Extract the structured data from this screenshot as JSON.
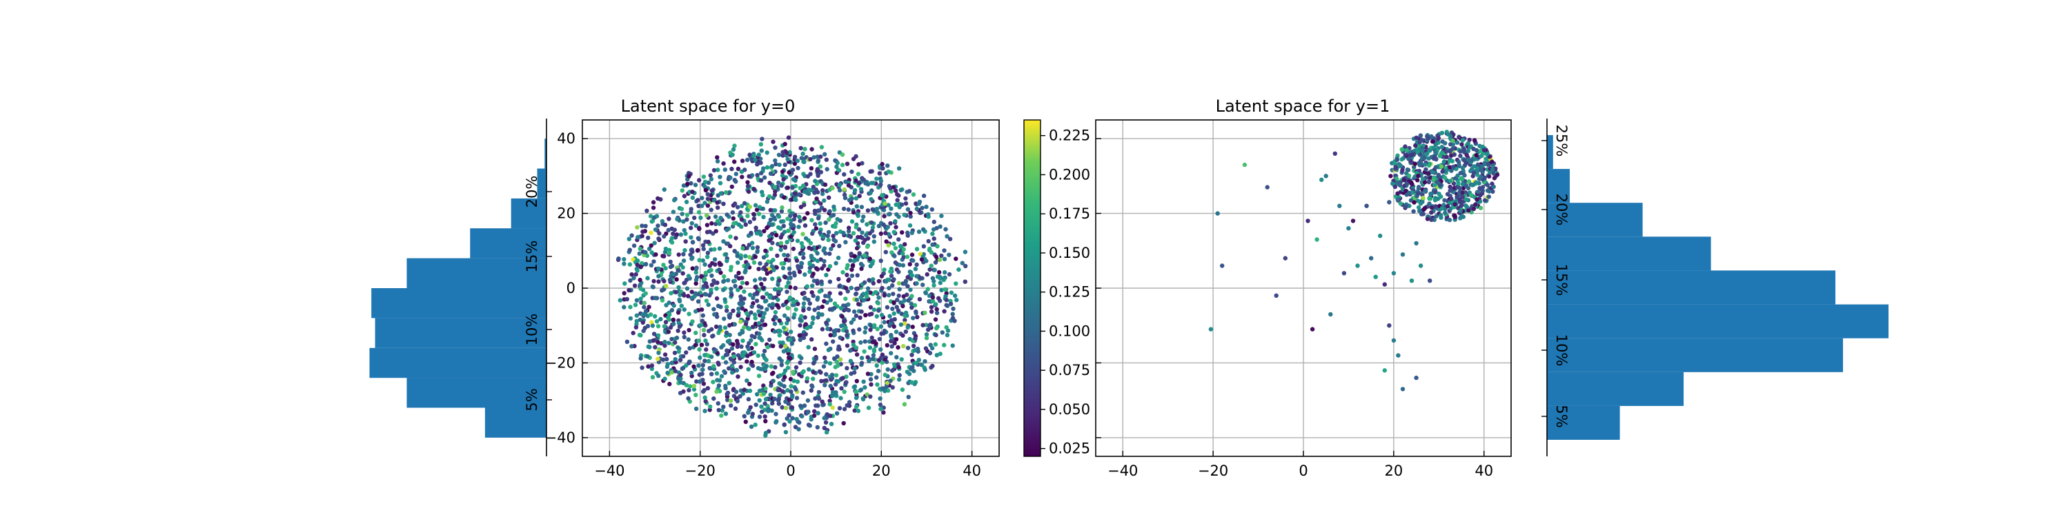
{
  "figure": {
    "background": "#ffffff"
  },
  "chart_data": [
    {
      "id": "hist_y0",
      "type": "bar",
      "orientation": "horizontal",
      "direction": "leftward",
      "color": "#1f77b4",
      "ylabel": "",
      "yticks": [
        "5%",
        "10%",
        "15%",
        "20%"
      ],
      "bins": [
        {
          "from": -40,
          "to": -32,
          "value": 6.6
        },
        {
          "from": -32,
          "to": -24,
          "value": 15.0
        },
        {
          "from": -24,
          "to": -16,
          "value": 19.0
        },
        {
          "from": -16,
          "to": -8,
          "value": 18.4
        },
        {
          "from": -8,
          "to": 0,
          "value": 18.8
        },
        {
          "from": 0,
          "to": 8,
          "value": 15.0
        },
        {
          "from": 8,
          "to": 16,
          "value": 8.2
        },
        {
          "from": 16,
          "to": 24,
          "value": 3.8
        },
        {
          "from": 24,
          "to": 32,
          "value": 1.0
        },
        {
          "from": 32,
          "to": 40,
          "value": 0.2
        }
      ],
      "scale_max": 20
    },
    {
      "id": "scatter_y0",
      "type": "scatter",
      "title": "Latent space for y=0",
      "xlim": [
        -46,
        46
      ],
      "ylim": [
        -45,
        45
      ],
      "xticks": [
        -40,
        -20,
        0,
        20,
        40
      ],
      "yticks": [
        -40,
        -20,
        0,
        20,
        40
      ],
      "grid": true,
      "n_points": 2600,
      "center": [
        0,
        0
      ],
      "radius": 40,
      "color_range": [
        0.02,
        0.235
      ]
    },
    {
      "id": "colorbar",
      "type": "heatmap",
      "colormap": "viridis",
      "range": [
        0.02,
        0.235
      ],
      "ticks": [
        "0.025",
        "0.050",
        "0.075",
        "0.100",
        "0.125",
        "0.150",
        "0.175",
        "0.200",
        "0.225"
      ],
      "tick_values": [
        0.025,
        0.05,
        0.075,
        0.1,
        0.125,
        0.15,
        0.175,
        0.2,
        0.225
      ]
    },
    {
      "id": "scatter_y1",
      "type": "scatter",
      "title": "Latent space for y=1",
      "xlim": [
        -46,
        46
      ],
      "ylim": [
        -45,
        45
      ],
      "xticks": [
        -40,
        -20,
        0,
        20,
        40
      ],
      "yticks": [
        -40,
        -20,
        0,
        20,
        40
      ],
      "grid": true,
      "ytick_labels_visible": false,
      "cluster": {
        "center": [
          31,
          30
        ],
        "radius": 12,
        "n_points": 700
      },
      "outliers": [
        [
          -20.5,
          -11
        ],
        [
          -19,
          20
        ],
        [
          -18,
          6
        ],
        [
          -13,
          33
        ],
        [
          -8,
          27
        ],
        [
          -6,
          -2
        ],
        [
          -4,
          8
        ],
        [
          1,
          18
        ],
        [
          2,
          -11
        ],
        [
          3,
          13
        ],
        [
          4,
          29
        ],
        [
          5,
          30
        ],
        [
          6,
          -7
        ],
        [
          7,
          36
        ],
        [
          8,
          22
        ],
        [
          9,
          4
        ],
        [
          10,
          16
        ],
        [
          11,
          18
        ],
        [
          12,
          6
        ],
        [
          14,
          22
        ],
        [
          15,
          8
        ],
        [
          16,
          3
        ],
        [
          17,
          14
        ],
        [
          18,
          1
        ],
        [
          18,
          -22
        ],
        [
          19,
          23
        ],
        [
          19,
          -10
        ],
        [
          20,
          -14
        ],
        [
          20,
          4
        ],
        [
          21,
          -18
        ],
        [
          22,
          9
        ],
        [
          22,
          -27
        ],
        [
          24,
          2
        ],
        [
          25,
          12
        ],
        [
          25,
          -24
        ],
        [
          26,
          6
        ],
        [
          27,
          26
        ],
        [
          28,
          2
        ]
      ],
      "color_range": [
        0.02,
        0.235
      ]
    },
    {
      "id": "hist_y1",
      "type": "bar",
      "orientation": "horizontal",
      "direction": "rightward",
      "color": "#1f77b4",
      "ylabel": "",
      "yticks": [
        "5%",
        "10%",
        "15%",
        "20%",
        "25%"
      ],
      "bins": [
        {
          "from": 0,
          "to": 4,
          "value": 4.8
        },
        {
          "from": 4,
          "to": 8,
          "value": 9.0
        },
        {
          "from": 8,
          "to": 12,
          "value": 19.5
        },
        {
          "from": 12,
          "to": 16,
          "value": 22.5
        },
        {
          "from": 16,
          "to": 20,
          "value": 19.0
        },
        {
          "from": 20,
          "to": 24,
          "value": 10.8
        },
        {
          "from": 24,
          "to": 28,
          "value": 6.3
        },
        {
          "from": 28,
          "to": 32,
          "value": 1.5
        },
        {
          "from": 32,
          "to": 36,
          "value": 0.4
        }
      ],
      "scale_max": 26
    }
  ]
}
